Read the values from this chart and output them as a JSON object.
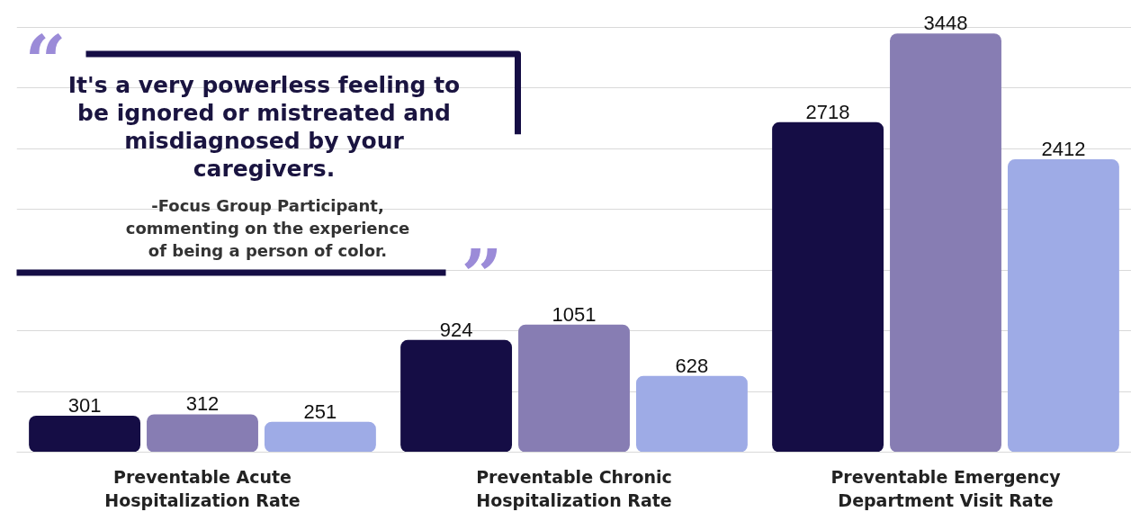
{
  "chart_data": {
    "type": "bar",
    "categories": [
      "Preventable Acute Hospitalization Rate",
      "Preventable Chronic Hospitalization Rate",
      "Preventable Emergency Department Visit Rate"
    ],
    "series": [
      {
        "color": "#150d45",
        "values": [
          301,
          924,
          2718
        ]
      },
      {
        "color": "#877db3",
        "values": [
          312,
          1051,
          3448
        ]
      },
      {
        "color": "#9eabe6",
        "values": [
          251,
          628,
          2412
        ]
      }
    ],
    "data_labels": true,
    "yticks": [
      {
        "value": 0,
        "label": null
      },
      {
        "value": 500,
        "label": null
      },
      {
        "value": 1000,
        "label": null
      },
      {
        "value": 1500,
        "label": null
      },
      {
        "value": 2000,
        "label": null
      },
      {
        "value": 2500,
        "label": null
      },
      {
        "value": 3000,
        "label": null
      },
      {
        "value": 3500,
        "label": null
      }
    ],
    "grid": "y",
    "tick_labels": false,
    "annotations": [
      "“",
      "It's a very powerless feeling to be ignored or mistreated and misdiagnosed by your caregivers.",
      "-Focus Group Participant, commenting on the experience of being a person of color.",
      "”"
    ]
  }
}
